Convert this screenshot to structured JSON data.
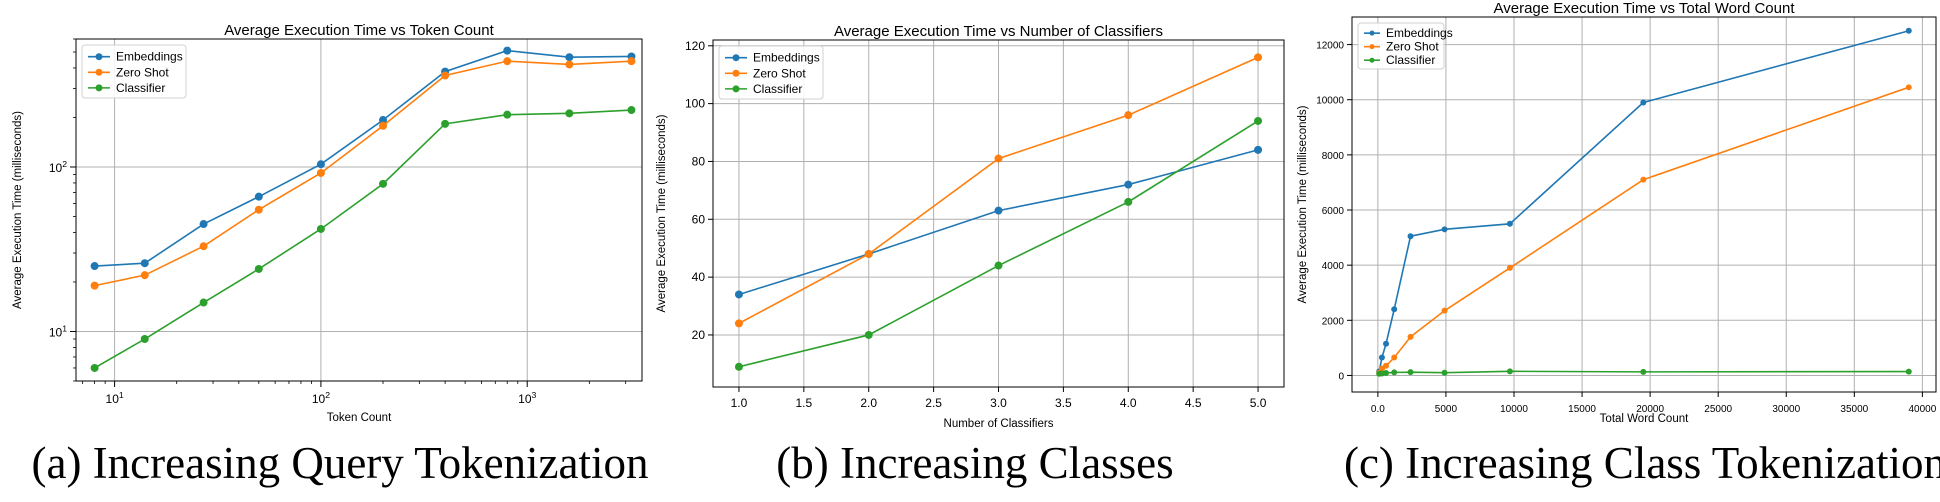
{
  "colors": {
    "Embeddings": "#1f77b4",
    "Zero Shot": "#ff7f0e",
    "Classifier": "#2ca02c"
  },
  "chart_data": [
    {
      "type": "line",
      "title": "Average Execution Time vs Token Count",
      "xlabel": "Token Count",
      "ylabel": "Average Execution Time (milliseconds)",
      "xscale": "log",
      "yscale": "log",
      "xlim": [
        6.5,
        3600
      ],
      "ylim": [
        5,
        600
      ],
      "xtick_labels": [
        "10^1",
        "10^2",
        "10^3"
      ],
      "ytick_labels": [
        "10^1",
        "10^2"
      ],
      "grid": true,
      "legend": "top-left",
      "x": [
        8,
        14,
        27,
        50,
        100,
        200,
        400,
        800,
        1600,
        3200
      ],
      "series": [
        {
          "name": "Embeddings",
          "values": [
            25,
            26,
            45,
            66,
            104,
            193,
            380,
            510,
            465,
            470
          ]
        },
        {
          "name": "Zero Shot",
          "values": [
            19,
            22,
            33,
            55,
            92,
            178,
            360,
            440,
            420,
            440
          ]
        },
        {
          "name": "Classifier",
          "values": [
            6,
            9,
            15,
            24,
            42,
            79,
            183,
            208,
            212,
            222
          ]
        }
      ],
      "caption": "(a) Increasing Query Tokenization"
    },
    {
      "type": "line",
      "title": "Average Execution Time vs Number of Classifiers",
      "xlabel": "Number of Classifiers",
      "ylabel": "Average Execution Time (milliseconds)",
      "xlim": [
        0.8,
        5.2
      ],
      "ylim": [
        2,
        122
      ],
      "xticks": [
        1.0,
        1.5,
        2.0,
        2.5,
        3.0,
        3.5,
        4.0,
        4.5,
        5.0
      ],
      "yticks": [
        20,
        40,
        60,
        80,
        100,
        120
      ],
      "grid": true,
      "legend": "top-left",
      "x": [
        1,
        2,
        3,
        4,
        5
      ],
      "series": [
        {
          "name": "Embeddings",
          "values": [
            34,
            48,
            63,
            72,
            84
          ]
        },
        {
          "name": "Zero Shot",
          "values": [
            24,
            48,
            81,
            96,
            116
          ]
        },
        {
          "name": "Classifier",
          "values": [
            9,
            20,
            44,
            66,
            94
          ]
        }
      ],
      "caption": "(b) Increasing Classes"
    },
    {
      "type": "line",
      "title": "Average Execution Time vs Total Word Count",
      "xlabel": "Total Word Count",
      "ylabel": "Average Execution Time (milliseconds)",
      "xlim": [
        -1900,
        41000
      ],
      "ylim": [
        -600,
        13000
      ],
      "xticks": [
        0,
        5000,
        10000,
        15000,
        20000,
        25000,
        30000,
        35000,
        40000
      ],
      "yticks": [
        0,
        2000,
        4000,
        6000,
        8000,
        10000,
        12000
      ],
      "grid": true,
      "legend": "top-left",
      "series": [
        {
          "name": "Embeddings",
          "x": [
            100,
            300,
            600,
            1200,
            2400,
            4900,
            9700,
            19500,
            39000
          ],
          "values": [
            150,
            650,
            1150,
            2400,
            5050,
            5300,
            5500,
            9900,
            12500
          ]
        },
        {
          "name": "Zero Shot",
          "x": [
            100,
            300,
            600,
            1200,
            2400,
            4900,
            9700,
            19500,
            39000
          ],
          "values": [
            100,
            250,
            350,
            650,
            1400,
            2350,
            3900,
            7100,
            10450
          ]
        },
        {
          "name": "Classifier",
          "x": [
            100,
            300,
            600,
            1200,
            2400,
            4900,
            9700,
            19500,
            39000
          ],
          "values": [
            60,
            70,
            90,
            110,
            120,
            100,
            150,
            130,
            140
          ]
        }
      ],
      "caption": "(c) Increasing Class Tokenization"
    }
  ]
}
